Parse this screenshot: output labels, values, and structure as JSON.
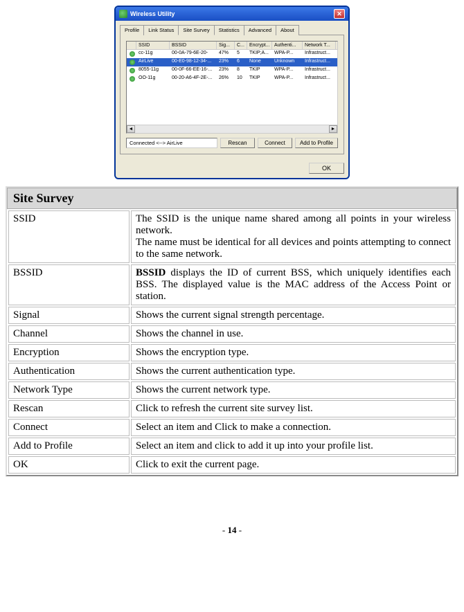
{
  "screenshot": {
    "title": "Wireless Utility",
    "tabs": [
      "Profile",
      "Link Status",
      "Site Survey",
      "Statistics",
      "Advanced",
      "About"
    ],
    "active_tab_index": 2,
    "columns": [
      "SSID",
      "BSSID",
      "Sig...",
      "C...",
      "Encrypt...",
      "Authenti...",
      "Network T..."
    ],
    "rows": [
      {
        "ssid": "cc-11g",
        "bssid": "00-0A-79-6E-20-",
        "sig": "47%",
        "ch": "5",
        "enc": "TKIP;A...",
        "auth": "WPA-P...",
        "nt": "Infrastruct...",
        "selected": false
      },
      {
        "ssid": "AirLive",
        "bssid": "00-E0-98-12-34-...",
        "sig": "23%",
        "ch": "6",
        "enc": "None",
        "auth": "Unknown",
        "nt": "Infrastruct...",
        "selected": true
      },
      {
        "ssid": "8055-11g",
        "bssid": "00-0F-66-EE-16-...",
        "sig": "23%",
        "ch": "8",
        "enc": "TKIP",
        "auth": "WPA-P...",
        "nt": "Infrastruct...",
        "selected": false
      },
      {
        "ssid": "OO-11g",
        "bssid": "00-20-A6-4F-2E-...",
        "sig": "26%",
        "ch": "10",
        "enc": "TKIP",
        "auth": "WPA-P...",
        "nt": "Infrastruct...",
        "selected": false
      }
    ],
    "status_text": "Connected <--> AirLive",
    "buttons": {
      "rescan": "Rescan",
      "connect": "Connect",
      "add_profile": "Add to Profile"
    },
    "ok_label": "OK"
  },
  "table": {
    "header": "Site Survey",
    "rows": [
      {
        "term": "SSID",
        "desc_html": "The SSID is the unique name shared among all points in your wireless network.<br>The name must be identical for all devices and points attempting to connect to the same network."
      },
      {
        "term": "BSSID",
        "desc_html": "<b>BSSID</b> displays the ID of current BSS, which uniquely identifies each BSS. The displayed value is the MAC address of the Access Point or station."
      },
      {
        "term": "Signal",
        "desc_html": "Shows the current signal strength percentage."
      },
      {
        "term": "Channel",
        "desc_html": "Shows the channel in use."
      },
      {
        "term": "Encryption",
        "desc_html": "Shows the encryption type."
      },
      {
        "term": "Authentication",
        "desc_html": "Shows the current authentication type."
      },
      {
        "term": "Network Type",
        "desc_html": "Shows the current network type."
      },
      {
        "term": "Rescan",
        "desc_html": "Click to refresh the current site survey list."
      },
      {
        "term": "Connect",
        "desc_html": "Select an item and Click to make a connection."
      },
      {
        "term": "Add to Profile",
        "desc_html": "Select an item and click to add it up into your profile list."
      },
      {
        "term": "OK",
        "desc_html": "Click to exit the current page."
      }
    ]
  },
  "page_number": "- 14 -",
  "colors": {
    "titlebar_start": "#3b78e7",
    "titlebar_end": "#1a4fc4",
    "dialog_bg": "#ece9d8",
    "selected_row": "#2a5fc7",
    "desc_header_bg": "#d8d8d8"
  }
}
